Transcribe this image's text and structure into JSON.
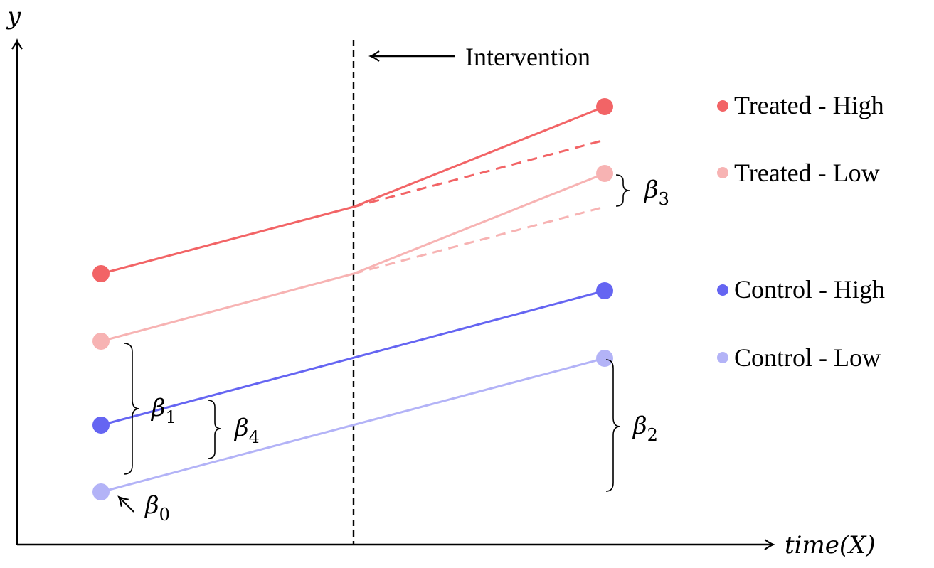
{
  "axes": {
    "y_label": "y",
    "x_label": "time(X)"
  },
  "intervention": {
    "label": "Intervention"
  },
  "legend": [
    {
      "label": "Treated - High",
      "color": "#f26466"
    },
    {
      "label": "Treated - Low",
      "color": "#f7b3b3"
    },
    {
      "label": "Control - High",
      "color": "#6565f2"
    },
    {
      "label": "Control - Low",
      "color": "#b3b3f7"
    }
  ],
  "coefficients": {
    "b0": {
      "symbol": "β",
      "subscript": "0"
    },
    "b1": {
      "symbol": "β",
      "subscript": "1"
    },
    "b2": {
      "symbol": "β",
      "subscript": "2"
    },
    "b3": {
      "symbol": "β",
      "subscript": "3"
    },
    "b4": {
      "symbol": "β",
      "subscript": "4"
    }
  },
  "colors": {
    "treated_high": "#f26466",
    "treated_low": "#f7b3b3",
    "control_high": "#6565f2",
    "control_low": "#b3b3f7",
    "axis": "#000000"
  }
}
